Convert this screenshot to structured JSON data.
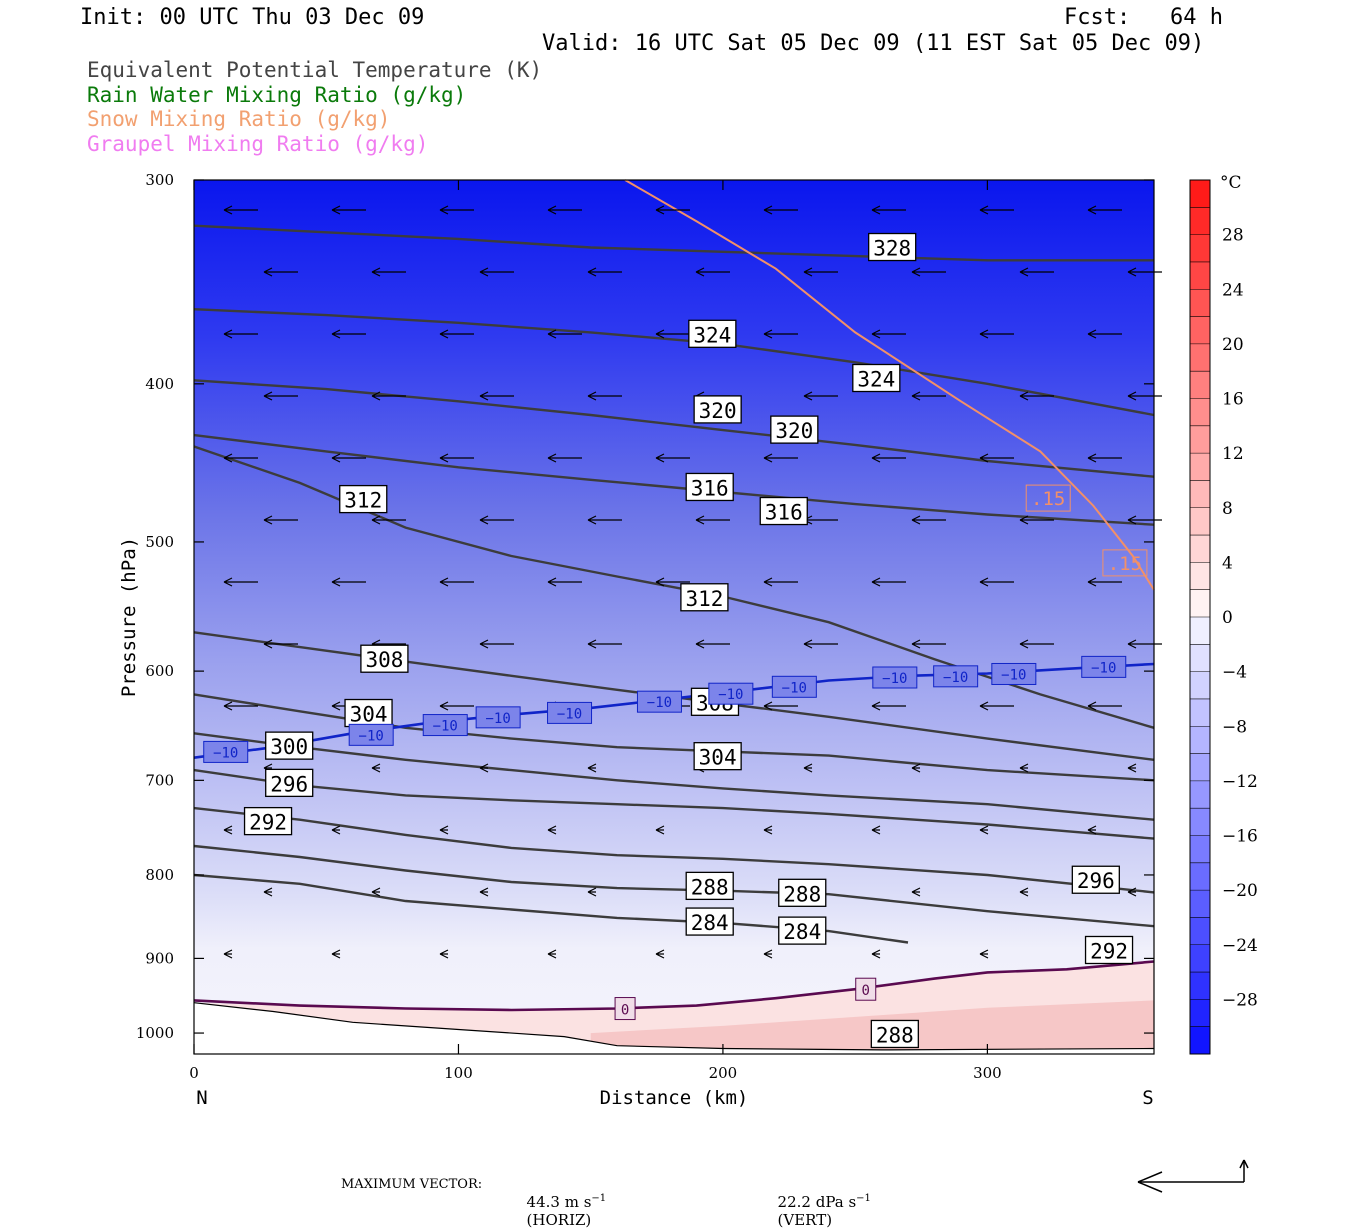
{
  "header": {
    "init": "Init: 00 UTC Thu 03 Dec 09",
    "fcst": "Fcst:   64 h",
    "valid": "Valid: 16 UTC Sat 05 Dec 09 (11 EST Sat 05 Dec 09)"
  },
  "legend": [
    {
      "label": "Equivalent Potential Temperature (K)",
      "color": "#444444"
    },
    {
      "label": "Rain Water Mixing Ratio (g/kg)",
      "color": "#0a7a0a"
    },
    {
      "label": "Snow Mixing Ratio (g/kg)",
      "color": "#f2a070"
    },
    {
      "label": "Graupel Mixing Ratio (g/kg)",
      "color": "#f07cf0"
    }
  ],
  "chart_data": {
    "type": "cross-section",
    "xlabel": "Distance (km)",
    "ylabel": "Pressure (hPa)",
    "xlim": [
      0,
      363
    ],
    "ylim": [
      1030,
      300
    ],
    "x_ticks": [
      "0",
      "100",
      "200",
      "300"
    ],
    "y_ticks": [
      "300",
      "400",
      "500",
      "600",
      "700",
      "800",
      "900",
      "1000"
    ],
    "x_end_labels": {
      "left": "N",
      "right": "S"
    },
    "colorbar": {
      "unit": "°C",
      "tick_labels": [
        "28",
        "24",
        "20",
        "16",
        "12",
        "8",
        "4",
        "0",
        "−4",
        "−8",
        "−12",
        "−16",
        "−20",
        "−24",
        "−28"
      ],
      "range": [
        -32,
        32
      ],
      "levels": 32
    },
    "theta_e_contours": [
      {
        "label": "328",
        "points": [
          [
            0,
            320
          ],
          [
            50,
            323
          ],
          [
            100,
            326
          ],
          [
            150,
            330
          ],
          [
            200,
            332
          ],
          [
            250,
            334
          ],
          [
            300,
            336
          ],
          [
            363,
            336
          ]
        ],
        "label_at": [
          264,
          330
        ]
      },
      {
        "label": "324",
        "points": [
          [
            0,
            360
          ],
          [
            50,
            363
          ],
          [
            100,
            367
          ],
          [
            150,
            372
          ],
          [
            200,
            378
          ],
          [
            250,
            388
          ],
          [
            300,
            400
          ],
          [
            363,
            418
          ]
        ],
        "label_at": [
          196,
          373
        ]
      },
      {
        "label": "324",
        "points": [
          [
            0,
            360
          ],
          [
            50,
            363
          ],
          [
            100,
            367
          ],
          [
            150,
            372
          ],
          [
            200,
            378
          ],
          [
            250,
            388
          ],
          [
            300,
            400
          ],
          [
            363,
            418
          ]
        ],
        "label_at": [
          258,
          397
        ]
      },
      {
        "label": "320",
        "points": [
          [
            0,
            398
          ],
          [
            50,
            403
          ],
          [
            100,
            410
          ],
          [
            150,
            418
          ],
          [
            200,
            427
          ],
          [
            250,
            436
          ],
          [
            300,
            446
          ],
          [
            363,
            456
          ]
        ],
        "label_at": [
          198,
          415
        ]
      },
      {
        "label": "320",
        "points": [
          [
            0,
            398
          ],
          [
            50,
            403
          ],
          [
            100,
            410
          ],
          [
            150,
            418
          ],
          [
            200,
            427
          ],
          [
            250,
            436
          ],
          [
            300,
            446
          ],
          [
            363,
            456
          ]
        ],
        "label_at": [
          227,
          427
        ]
      },
      {
        "label": "316",
        "points": [
          [
            0,
            430
          ],
          [
            50,
            440
          ],
          [
            100,
            450
          ],
          [
            150,
            458
          ],
          [
            200,
            466
          ],
          [
            250,
            474
          ],
          [
            300,
            481
          ],
          [
            363,
            488
          ]
        ],
        "label_at": [
          195,
          463
        ]
      },
      {
        "label": "316",
        "points": [
          [
            0,
            430
          ],
          [
            50,
            440
          ],
          [
            100,
            450
          ],
          [
            150,
            458
          ],
          [
            200,
            466
          ],
          [
            250,
            474
          ],
          [
            300,
            481
          ],
          [
            363,
            488
          ]
        ],
        "label_at": [
          223,
          479
        ]
      },
      {
        "label": "312",
        "points": [
          [
            0,
            437
          ],
          [
            40,
            460
          ],
          [
            80,
            490
          ],
          [
            120,
            510
          ],
          [
            160,
            525
          ],
          [
            200,
            540
          ],
          [
            240,
            560
          ],
          [
            280,
            590
          ],
          [
            320,
            620
          ],
          [
            363,
            650
          ]
        ],
        "label_at": [
          64,
          471
        ]
      },
      {
        "label": "312",
        "points": [
          [
            0,
            437
          ],
          [
            40,
            460
          ],
          [
            80,
            490
          ],
          [
            120,
            510
          ],
          [
            160,
            525
          ],
          [
            200,
            540
          ],
          [
            240,
            560
          ],
          [
            280,
            590
          ],
          [
            320,
            620
          ],
          [
            363,
            650
          ]
        ],
        "label_at": [
          193,
          541
        ]
      },
      {
        "label": "308",
        "points": [
          [
            0,
            568
          ],
          [
            40,
            580
          ],
          [
            80,
            592
          ],
          [
            120,
            604
          ],
          [
            160,
            616
          ],
          [
            200,
            628
          ],
          [
            240,
            640
          ],
          [
            300,
            660
          ],
          [
            363,
            680
          ]
        ],
        "label_at": [
          72,
          590
        ]
      },
      {
        "label": "308",
        "points": [
          [
            0,
            568
          ],
          [
            40,
            580
          ],
          [
            80,
            592
          ],
          [
            120,
            604
          ],
          [
            160,
            616
          ],
          [
            200,
            628
          ],
          [
            240,
            640
          ],
          [
            300,
            660
          ],
          [
            363,
            680
          ]
        ],
        "label_at": [
          197,
          627
        ]
      },
      {
        "label": "304",
        "points": [
          [
            0,
            620
          ],
          [
            40,
            635
          ],
          [
            80,
            650
          ],
          [
            120,
            660
          ],
          [
            160,
            668
          ],
          [
            200,
            672
          ],
          [
            240,
            676
          ],
          [
            300,
            690
          ],
          [
            363,
            700
          ]
        ],
        "label_at": [
          66,
          637
        ]
      },
      {
        "label": "304",
        "points": [
          [
            0,
            620
          ],
          [
            40,
            635
          ],
          [
            80,
            650
          ],
          [
            120,
            660
          ],
          [
            160,
            668
          ],
          [
            200,
            672
          ],
          [
            240,
            676
          ],
          [
            300,
            690
          ],
          [
            363,
            700
          ]
        ],
        "label_at": [
          198,
          677
        ]
      },
      {
        "label": "300",
        "points": [
          [
            0,
            655
          ],
          [
            40,
            668
          ],
          [
            80,
            680
          ],
          [
            120,
            690
          ],
          [
            160,
            700
          ],
          [
            200,
            708
          ],
          [
            240,
            715
          ],
          [
            300,
            724
          ],
          [
            363,
            740
          ]
        ],
        "label_at": [
          36,
          667
        ]
      },
      {
        "label": "296",
        "points": [
          [
            0,
            690
          ],
          [
            40,
            705
          ],
          [
            80,
            715
          ],
          [
            120,
            720
          ],
          [
            160,
            724
          ],
          [
            200,
            728
          ],
          [
            240,
            734
          ],
          [
            300,
            745
          ],
          [
            363,
            760
          ]
        ],
        "label_at": [
          36,
          703
        ]
      },
      {
        "label": "296",
        "points": [
          [
            0,
            690
          ],
          [
            40,
            705
          ],
          [
            80,
            715
          ],
          [
            120,
            720
          ],
          [
            160,
            724
          ],
          [
            200,
            728
          ],
          [
            240,
            734
          ],
          [
            300,
            745
          ],
          [
            363,
            760
          ]
        ],
        "label_at": [
          341,
          806
        ]
      },
      {
        "label": "292",
        "points": [
          [
            0,
            728
          ],
          [
            40,
            740
          ],
          [
            80,
            756
          ],
          [
            120,
            770
          ],
          [
            160,
            778
          ],
          [
            200,
            782
          ],
          [
            240,
            788
          ],
          [
            300,
            800
          ],
          [
            363,
            820
          ]
        ],
        "label_at": [
          28,
          742
        ]
      },
      {
        "label": "292",
        "points": [
          [
            0,
            728
          ],
          [
            40,
            740
          ],
          [
            80,
            756
          ],
          [
            120,
            770
          ],
          [
            160,
            778
          ],
          [
            200,
            782
          ],
          [
            240,
            788
          ],
          [
            300,
            800
          ],
          [
            363,
            820
          ]
        ],
        "label_at": [
          346,
          890
        ]
      },
      {
        "label": "288",
        "points": [
          [
            0,
            768
          ],
          [
            40,
            780
          ],
          [
            80,
            795
          ],
          [
            120,
            808
          ],
          [
            160,
            815
          ],
          [
            200,
            818
          ],
          [
            240,
            822
          ],
          [
            300,
            842
          ],
          [
            363,
            860
          ]
        ],
        "label_at": [
          195,
          813
        ]
      },
      {
        "label": "288",
        "points": [
          [
            0,
            768
          ],
          [
            40,
            780
          ],
          [
            80,
            795
          ],
          [
            120,
            808
          ],
          [
            160,
            815
          ],
          [
            200,
            818
          ],
          [
            240,
            822
          ],
          [
            300,
            842
          ],
          [
            363,
            860
          ]
        ],
        "label_at": [
          230,
          821
        ]
      },
      {
        "label": "288",
        "points": [
          [
            0,
            768
          ],
          [
            40,
            780
          ],
          [
            80,
            795
          ],
          [
            120,
            808
          ],
          [
            160,
            815
          ],
          [
            200,
            818
          ],
          [
            240,
            822
          ],
          [
            300,
            842
          ],
          [
            363,
            860
          ]
        ],
        "label_at": [
          265,
          1002
        ]
      },
      {
        "label": "284",
        "points": [
          [
            0,
            800
          ],
          [
            40,
            810
          ],
          [
            80,
            830
          ],
          [
            120,
            840
          ],
          [
            160,
            850
          ],
          [
            200,
            856
          ],
          [
            240,
            866
          ],
          [
            270,
            880
          ]
        ],
        "label_at": [
          195,
          855
        ]
      },
      {
        "label": "284",
        "points": [
          [
            0,
            800
          ],
          [
            40,
            810
          ],
          [
            80,
            830
          ],
          [
            120,
            840
          ],
          [
            160,
            850
          ],
          [
            200,
            856
          ],
          [
            240,
            866
          ],
          [
            270,
            880
          ]
        ],
        "label_at": [
          230,
          866
        ]
      }
    ],
    "isotherm_contours": [
      {
        "label": "−10",
        "points": [
          [
            0,
            678
          ],
          [
            30,
            668
          ],
          [
            60,
            655
          ],
          [
            90,
            645
          ],
          [
            120,
            638
          ],
          [
            150,
            632
          ],
          [
            180,
            624
          ],
          [
            210,
            616
          ],
          [
            240,
            608
          ],
          [
            270,
            604
          ],
          [
            300,
            602
          ],
          [
            330,
            598
          ],
          [
            363,
            594
          ]
        ]
      },
      {
        "label": "0",
        "points": [
          [
            0,
            955
          ],
          [
            40,
            962
          ],
          [
            80,
            966
          ],
          [
            120,
            968
          ],
          [
            160,
            966
          ],
          [
            190,
            962
          ],
          [
            220,
            952
          ],
          [
            250,
            940
          ],
          [
            280,
            926
          ],
          [
            300,
            918
          ],
          [
            330,
            914
          ],
          [
            363,
            904
          ]
        ]
      }
    ],
    "snow_contours": [
      {
        "label": ".15",
        "points": [
          [
            163,
            300
          ],
          [
            190,
            318
          ],
          [
            220,
            340
          ],
          [
            250,
            372
          ],
          [
            290,
            410
          ],
          [
            320,
            440
          ],
          [
            340,
            475
          ],
          [
            355,
            510
          ],
          [
            363,
            535
          ]
        ]
      }
    ],
    "ground_line": {
      "label": "",
      "points": [
        [
          0,
          958
        ],
        [
          30,
          970
        ],
        [
          60,
          985
        ],
        [
          100,
          995
        ],
        [
          140,
          1005
        ],
        [
          160,
          1018
        ],
        [
          200,
          1022
        ],
        [
          260,
          1024
        ],
        [
          363,
          1022
        ]
      ]
    },
    "max_vector": {
      "label": "MAXIMUM VECTOR:",
      "horiz": "44.3 m s",
      "horiz_exp": "−1",
      "horiz_tag": "(HORIZ)",
      "vert": "22.2 dPa s",
      "vert_exp": "−1",
      "vert_tag": "(VERT)"
    }
  }
}
